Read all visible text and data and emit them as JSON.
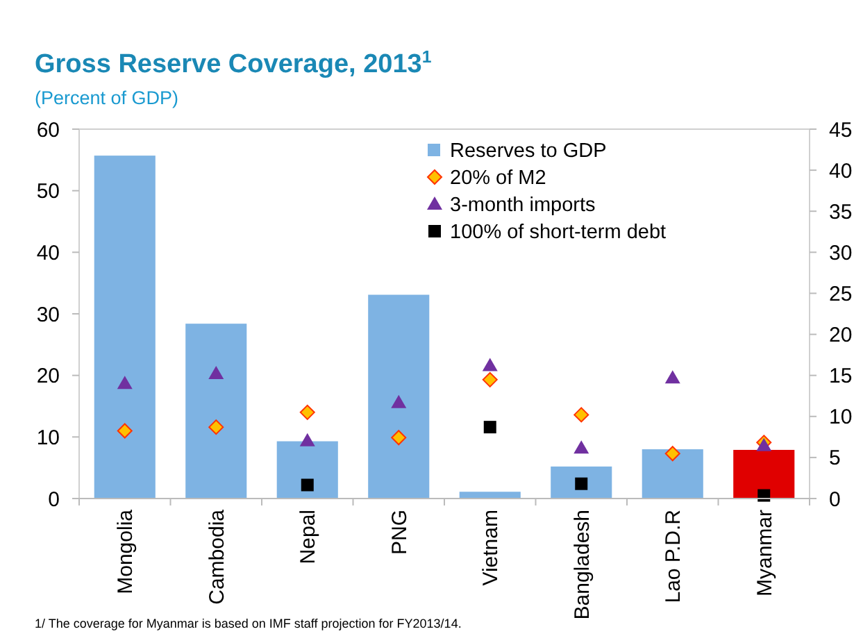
{
  "chart_data": {
    "type": "bar",
    "title": "Gross Reserve Coverage, 2013$^{1}$",
    "subtitle": "(Percent of GDP)",
    "categories": [
      "Mongolia",
      "Cambodia",
      "Nepal",
      "PNG",
      "Vietnam",
      "Bangladesh",
      "Lao P.D.R",
      "Myanmar"
    ],
    "series": [
      {
        "name": "Reserves to GDP",
        "color": "#7eb3e3",
        "colors": [
          "#7eb3e3",
          "#7eb3e3",
          "#7eb3e3",
          "#7eb3e3",
          "#7eb3e3",
          "#7eb3e3",
          "#7eb3e3",
          "#e00000"
        ],
        "values": [
          55.7,
          28.4,
          9.3,
          33.1,
          1.1,
          5.2,
          8.0,
          7.9
        ]
      },
      {
        "name": "20% of M2",
        "type": "scatter",
        "marker": "diamond",
        "color": "#ffc000",
        "values": [
          11.0,
          11.6,
          14.0,
          9.9,
          19.3,
          13.6,
          7.3,
          9.1
        ]
      },
      {
        "name": "3-month imports",
        "type": "scatter",
        "marker": "triangle",
        "color": "#7030a0",
        "values": [
          18.7,
          20.3,
          9.4,
          15.6,
          21.6,
          8.2,
          19.6,
          8.6
        ]
      },
      {
        "name": "100% of short-term debt",
        "type": "scatter",
        "marker": "square",
        "color": "#000000",
        "values": [
          null,
          null,
          2.2,
          null,
          11.6,
          2.4,
          null,
          0.5
        ]
      }
    ],
    "ylim": [
      0,
      60
    ],
    "yticks": [
      0,
      10,
      20,
      30,
      40,
      50,
      60
    ],
    "y2lim": [
      0,
      45
    ],
    "y2ticks": [
      0,
      5,
      10,
      15,
      20,
      25,
      30,
      35,
      40,
      45
    ],
    "legend": "top right",
    "annotations": [
      "1/ The coverage for Myanmar is based on IMF staff projection for FY2013/14."
    ]
  }
}
